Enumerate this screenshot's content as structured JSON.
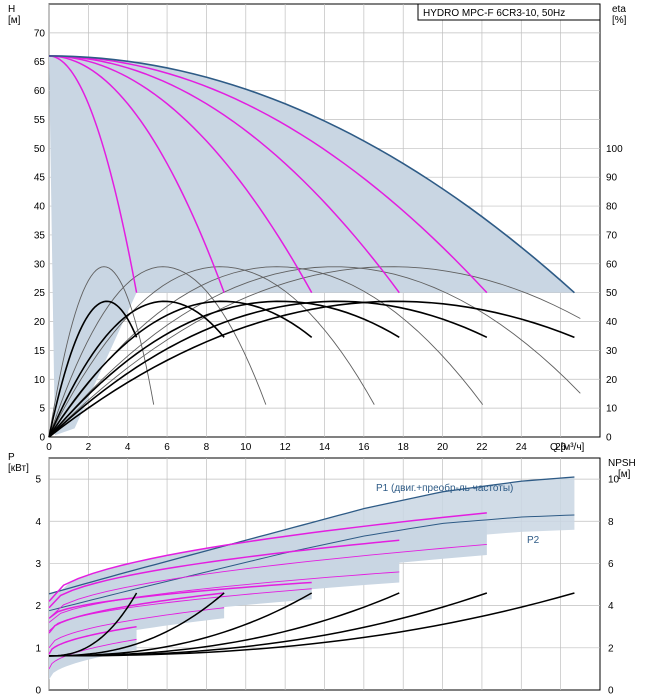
{
  "chart_data": [
    {
      "type": "line",
      "title": "HYDRO MPC-F 6CR3-10, 50Hz",
      "y_axis_left": {
        "label": "H",
        "unit": "[м]",
        "ylim": [
          0,
          75
        ],
        "ticks": [
          0,
          5,
          10,
          15,
          20,
          25,
          30,
          35,
          40,
          45,
          50,
          55,
          60,
          65,
          70
        ]
      },
      "y_axis_right": {
        "label": "eta",
        "unit": "[%]",
        "ylim": [
          0,
          150
        ],
        "ticks": [
          0,
          10,
          20,
          30,
          40,
          50,
          60,
          70,
          80,
          90,
          100
        ]
      },
      "x_axis": {
        "label": "Q [м³/ч]",
        "xlim": [
          0,
          28
        ],
        "ticks": [
          0,
          2,
          4,
          6,
          8,
          10,
          12,
          14,
          16,
          18,
          20,
          22,
          24,
          26
        ]
      },
      "grid": true,
      "operating_area": {
        "h_min": 25,
        "h_max_at_q0": 66,
        "q_max": 26.7
      },
      "head_curves": [
        {
          "pumps": 1,
          "points": [
            [
              0,
              66
            ],
            [
              1.5,
              60.6
            ],
            [
              3,
              46.5
            ],
            [
              4.45,
              25
            ]
          ]
        },
        {
          "pumps": 2,
          "points": [
            [
              0,
              66
            ],
            [
              3,
              60.6
            ],
            [
              6,
              46.5
            ],
            [
              8.9,
              25
            ]
          ]
        },
        {
          "pumps": 3,
          "points": [
            [
              0,
              66
            ],
            [
              4.5,
              60.6
            ],
            [
              9,
              46.5
            ],
            [
              13.35,
              25
            ]
          ]
        },
        {
          "pumps": 4,
          "points": [
            [
              0,
              66
            ],
            [
              6,
              60.6
            ],
            [
              12,
              46.5
            ],
            [
              17.8,
              25
            ]
          ]
        },
        {
          "pumps": 5,
          "points": [
            [
              0,
              66
            ],
            [
              7.5,
              60.6
            ],
            [
              15,
              46.5
            ],
            [
              22.25,
              25
            ]
          ]
        },
        {
          "pumps": 6,
          "points": [
            [
              0,
              66
            ],
            [
              9,
              60.6
            ],
            [
              18,
              46.5
            ],
            [
              26.7,
              25
            ]
          ]
        }
      ],
      "efficiency_curves": [
        {
          "pumps": 1,
          "q_max": 4.45,
          "eta_max": 47
        },
        {
          "pumps": 2,
          "q_max": 8.9,
          "eta_max": 47
        },
        {
          "pumps": 3,
          "q_max": 13.35,
          "eta_max": 47
        },
        {
          "pumps": 4,
          "q_max": 17.8,
          "eta_max": 47
        },
        {
          "pumps": 5,
          "q_max": 22.25,
          "eta_max": 47
        },
        {
          "pumps": 6,
          "q_max": 26.7,
          "eta_max": 47
        }
      ],
      "system_efficiency_curves": [
        {
          "q_at_max": 2.8,
          "eta_max": 59
        },
        {
          "q_at_max": 5.8,
          "eta_max": 59
        },
        {
          "q_at_max": 8.7,
          "eta_max": 59
        },
        {
          "q_at_max": 11.6,
          "eta_max": 59
        },
        {
          "q_at_max": 14.5,
          "eta_max": 59
        },
        {
          "q_at_max": 17.4,
          "eta_max": 59
        }
      ]
    },
    {
      "type": "line",
      "y_axis_left": {
        "label": "P",
        "unit": "[кВт]",
        "ylim": [
          0,
          5.5
        ],
        "ticks": [
          0,
          1,
          2,
          3,
          4,
          5
        ]
      },
      "y_axis_right": {
        "label": "NPSH",
        "unit": "[м]",
        "ylim": [
          0,
          11
        ],
        "ticks": [
          0,
          2,
          4,
          6,
          8,
          10
        ]
      },
      "x_axis": {
        "xlim": [
          0,
          28
        ]
      },
      "grid": true,
      "annotations": [
        "P1 (двиг.+преобр-ль частоты)",
        "P2"
      ],
      "p1_envelope": [
        [
          0,
          2.28
        ],
        [
          4,
          2.8
        ],
        [
          8,
          3.3
        ],
        [
          12,
          3.8
        ],
        [
          16,
          4.3
        ],
        [
          20,
          4.7
        ],
        [
          24,
          4.95
        ],
        [
          26.7,
          5.05
        ]
      ],
      "p2_envelope": [
        [
          0,
          1.88
        ],
        [
          4,
          2.35
        ],
        [
          8,
          2.8
        ],
        [
          12,
          3.25
        ],
        [
          16,
          3.65
        ],
        [
          20,
          3.95
        ],
        [
          24,
          4.1
        ],
        [
          26.7,
          4.15
        ]
      ],
      "power_curves_p1": [
        {
          "q_max": 4.45,
          "p_start": 0.85,
          "p_end": 1.5
        },
        {
          "q_max": 8.9,
          "p_start": 1.35,
          "p_end": 2.3
        },
        {
          "q_max": 13.35,
          "p_start": 1.7,
          "p_end": 2.55
        },
        {
          "q_max": 17.8,
          "p_start": 1.95,
          "p_end": 3.55
        },
        {
          "q_max": 22.25,
          "p_start": 2.1,
          "p_end": 4.2
        }
      ],
      "power_curves_p2": [
        {
          "q_max": 4.45,
          "p_start": 0.5,
          "p_end": 1.2
        },
        {
          "q_max": 8.9,
          "p_start": 1.0,
          "p_end": 1.95
        },
        {
          "q_max": 13.35,
          "p_start": 1.4,
          "p_end": 2.4
        },
        {
          "q_max": 17.8,
          "p_start": 1.6,
          "p_end": 2.8
        },
        {
          "q_max": 22.25,
          "p_start": 1.7,
          "p_end": 3.45
        }
      ],
      "npsh_curves": [
        {
          "q_max": 4.45,
          "npsh_max": 4.6
        },
        {
          "q_max": 8.9,
          "npsh_max": 4.6
        },
        {
          "q_max": 13.35,
          "npsh_max": 4.6
        },
        {
          "q_max": 17.8,
          "npsh_max": 4.6
        },
        {
          "q_max": 22.25,
          "npsh_max": 4.6
        },
        {
          "q_max": 26.7,
          "npsh_max": 4.6
        }
      ]
    }
  ],
  "colors": {
    "area": "#c9d6e3",
    "envelope": "#2e5b86",
    "head": "#e31ee0",
    "eff": "#000000",
    "thin": "#606060",
    "grid": "#bfbfbf"
  }
}
